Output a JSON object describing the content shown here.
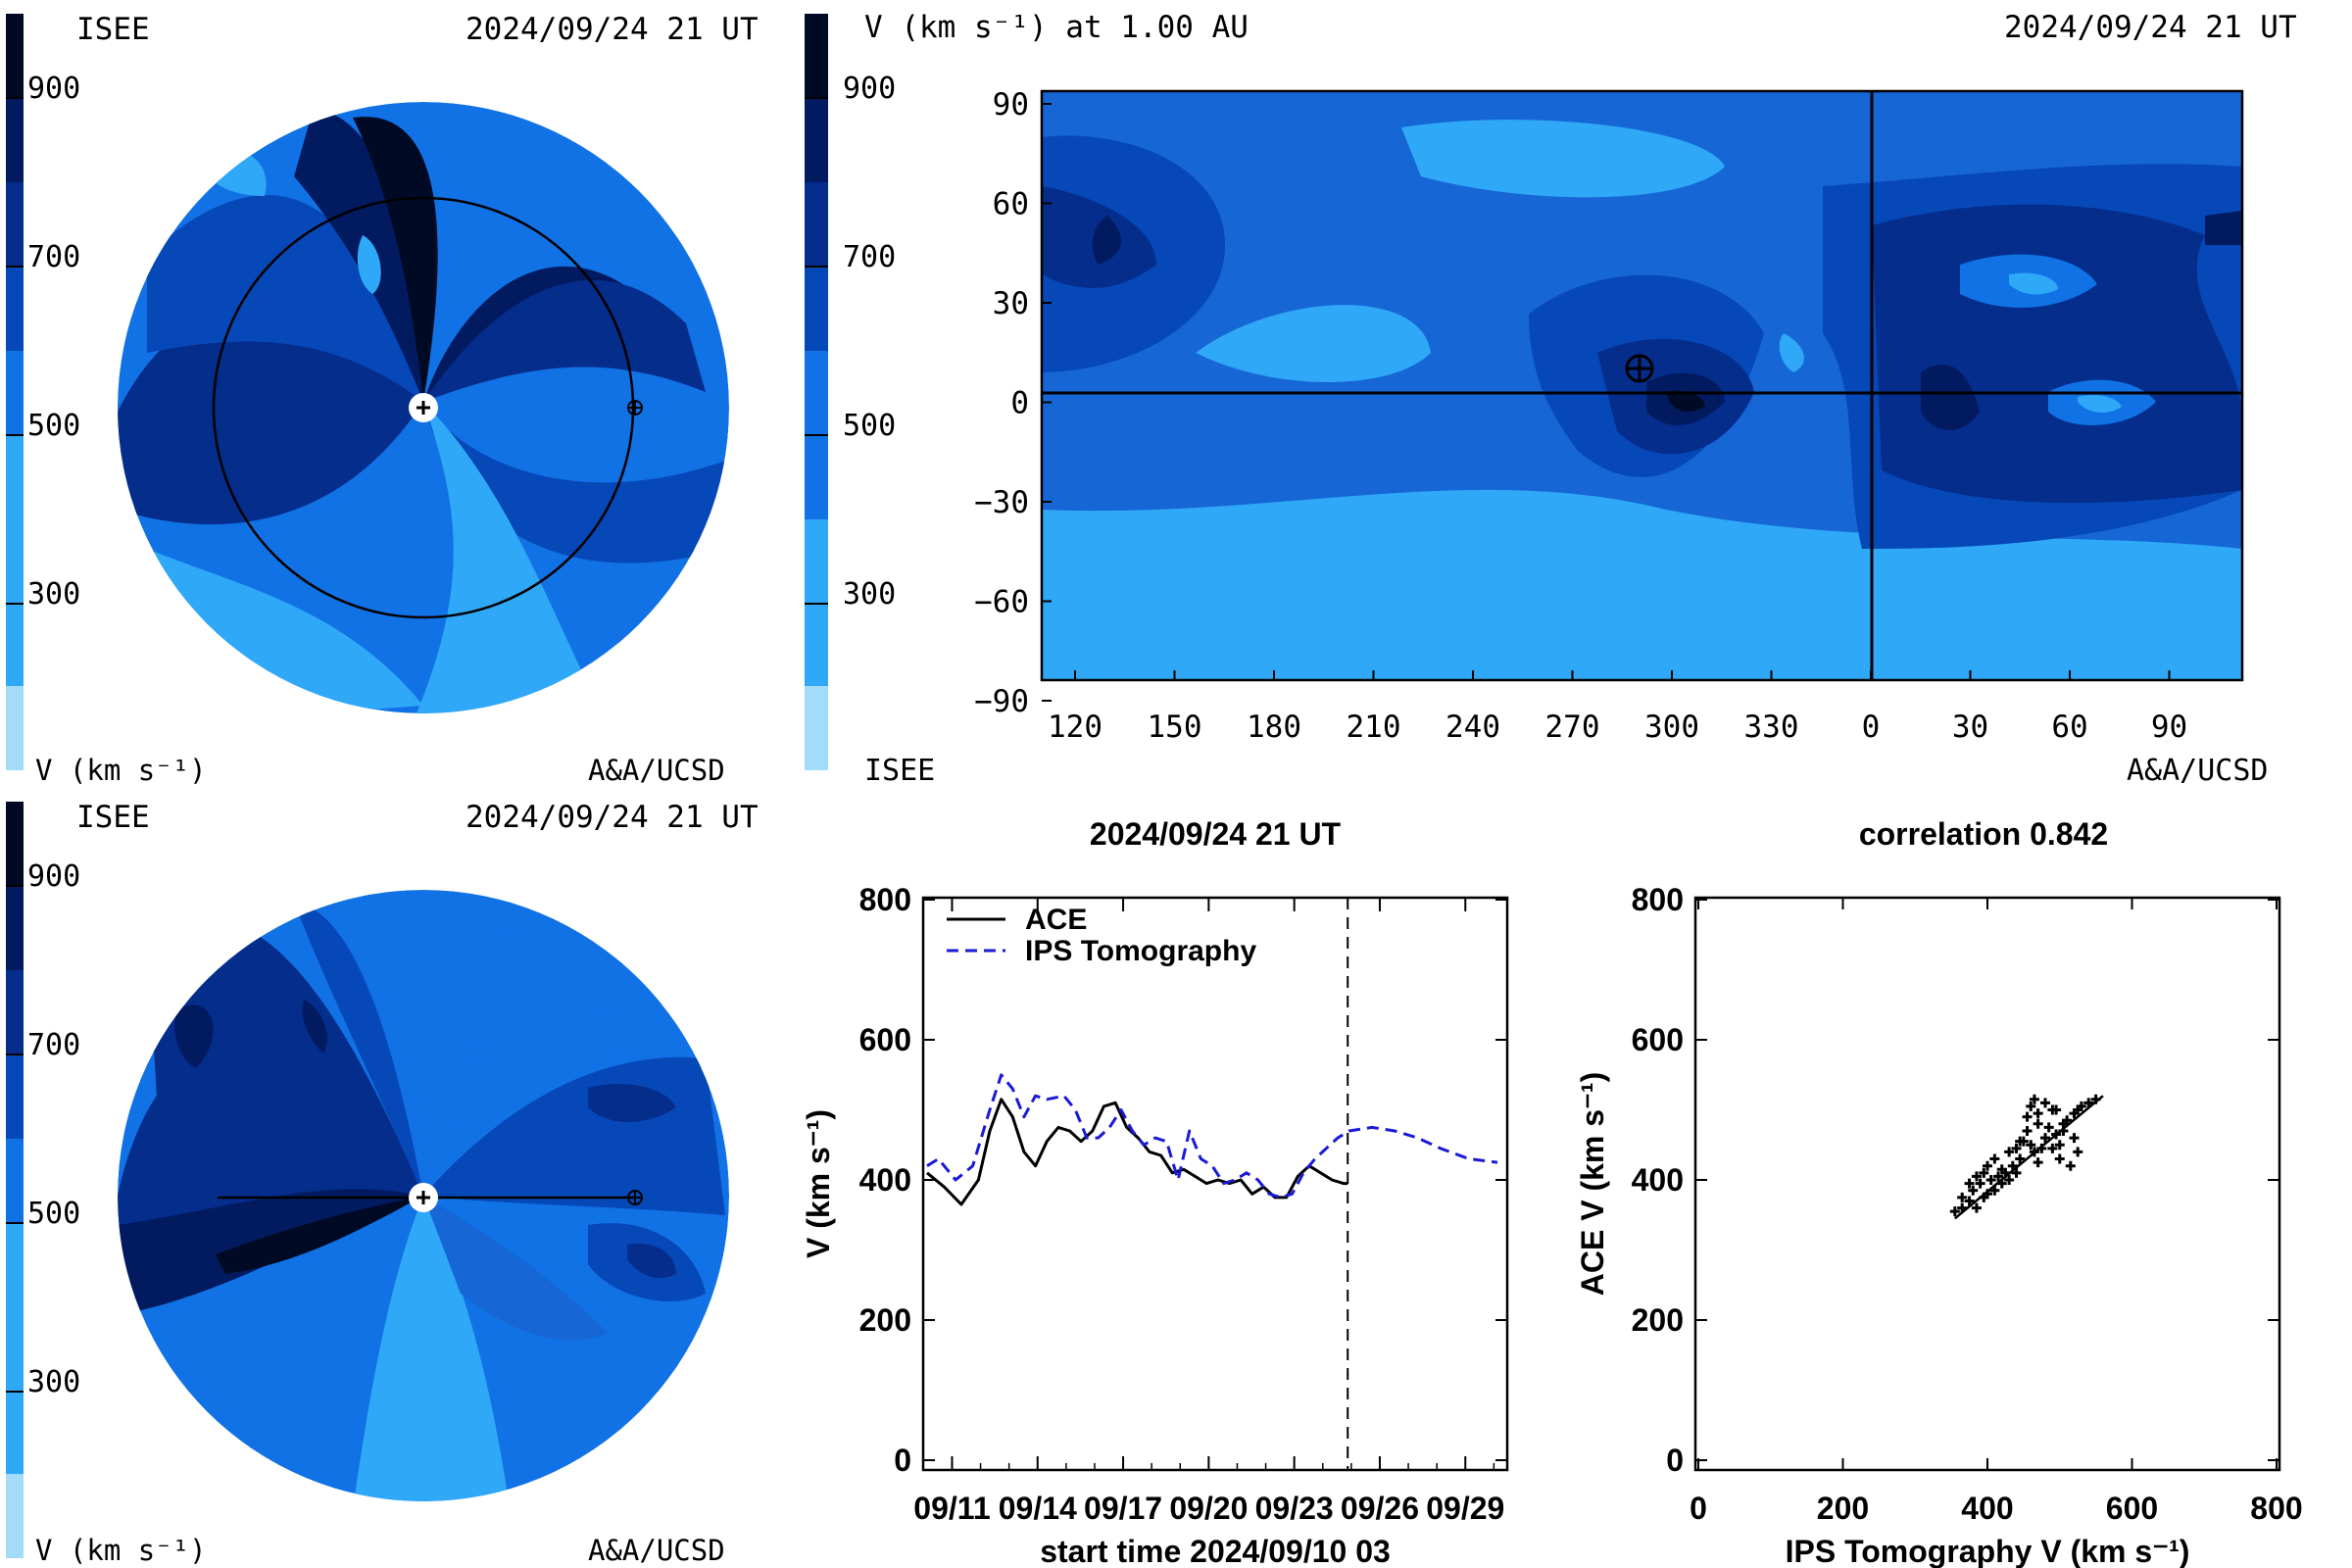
{
  "colors": {
    "bands": [
      "#a3dcf9",
      "#2fa8f7",
      "#1172e6",
      "#0748b8",
      "#042d8c",
      "#021a60",
      "#000a24"
    ],
    "mid": "#1666d6",
    "line_ace": "#000000",
    "line_ips": "#1a1ad6"
  },
  "colorbar_ticks": [
    "900",
    "700",
    "500",
    "300"
  ],
  "panel_ecliptic": {
    "org": "ISEE",
    "date": "2024/09/24 21 UT",
    "unit": "V (km s⁻¹)",
    "credit": "A&A/UCSD"
  },
  "panel_meridional": {
    "org": "ISEE",
    "date": "2024/09/24 21 UT",
    "unit": "V (km s⁻¹)",
    "credit": "A&A/UCSD"
  },
  "panel_map": {
    "title": "V (km s⁻¹) at 1.00 AU",
    "date": "2024/09/24 21 UT",
    "org": "ISEE",
    "credit": "A&A/UCSD",
    "xticks": [
      "120",
      "150",
      "180",
      "210",
      "240",
      "270",
      "300",
      "330",
      "0",
      "30",
      "60",
      "90"
    ],
    "yticks": [
      "90",
      "60",
      "30",
      "0",
      "−30",
      "−60",
      "−90"
    ]
  },
  "chart_data": [
    {
      "type": "line",
      "title": "2024/09/24 21 UT",
      "xlabel": "start time 2024/09/10 03",
      "ylabel": "V (km s⁻¹)",
      "ylim": [
        0,
        800
      ],
      "xlim_days": [
        0,
        20
      ],
      "xticks": [
        "09/11",
        "09/14",
        "09/17",
        "09/20",
        "09/23",
        "09/26",
        "09/29"
      ],
      "yticks": [
        "0",
        "200",
        "400",
        "600",
        "800"
      ],
      "now_marker_day": 14.75,
      "series": [
        {
          "name": "ACE",
          "x": [
            0,
            0.6,
            1.2,
            1.8,
            2.2,
            2.6,
            3.0,
            3.4,
            3.8,
            4.2,
            4.6,
            5.0,
            5.4,
            5.8,
            6.2,
            6.6,
            7.0,
            7.4,
            7.8,
            8.2,
            8.6,
            9.0,
            9.4,
            9.8,
            10.2,
            10.6,
            11.0,
            11.4,
            11.8,
            12.2,
            12.6,
            13.0,
            13.4,
            13.8,
            14.2,
            14.6,
            14.75
          ],
          "y": [
            410,
            390,
            365,
            400,
            470,
            515,
            490,
            440,
            420,
            455,
            475,
            470,
            455,
            470,
            505,
            510,
            475,
            460,
            440,
            435,
            410,
            415,
            405,
            395,
            400,
            395,
            400,
            380,
            390,
            375,
            375,
            405,
            420,
            410,
            400,
            395,
            395
          ]
        },
        {
          "name": "IPS Tomography",
          "x": [
            0,
            0.4,
            1.0,
            1.6,
            2.2,
            2.6,
            3.0,
            3.4,
            3.8,
            4.2,
            4.8,
            5.2,
            5.6,
            6.0,
            6.4,
            6.8,
            7.2,
            7.6,
            8.0,
            8.4,
            8.8,
            9.2,
            9.6,
            10.0,
            10.4,
            10.8,
            11.2,
            11.6,
            12.0,
            12.4,
            12.8,
            13.2,
            13.6,
            14.0,
            14.4,
            14.8,
            15.6,
            16.4,
            17.2,
            18.0,
            19.0,
            20.0
          ],
          "y": [
            420,
            430,
            400,
            420,
            500,
            550,
            530,
            490,
            520,
            515,
            520,
            500,
            460,
            460,
            475,
            500,
            470,
            450,
            460,
            455,
            400,
            470,
            430,
            420,
            395,
            400,
            410,
            400,
            380,
            375,
            380,
            410,
            430,
            445,
            460,
            470,
            475,
            470,
            460,
            445,
            430,
            425
          ]
        }
      ],
      "legend": "top-left"
    },
    {
      "type": "scatter",
      "title": "correlation 0.842",
      "xlabel": "IPS Tomography V (km s⁻¹)",
      "ylabel": "ACE V (km s⁻¹)",
      "xlim": [
        0,
        800
      ],
      "ylim": [
        0,
        800
      ],
      "xticks": [
        "0",
        "200",
        "400",
        "600",
        "800"
      ],
      "yticks": [
        "0",
        "200",
        "400",
        "600",
        "800"
      ],
      "points": [
        [
          355,
          355
        ],
        [
          365,
          360
        ],
        [
          375,
          370
        ],
        [
          380,
          385
        ],
        [
          385,
          360
        ],
        [
          395,
          375
        ],
        [
          390,
          395
        ],
        [
          400,
          380
        ],
        [
          405,
          400
        ],
        [
          410,
          385
        ],
        [
          415,
          405
        ],
        [
          420,
          395
        ],
        [
          425,
          410
        ],
        [
          430,
          400
        ],
        [
          435,
          420
        ],
        [
          440,
          410
        ],
        [
          445,
          430
        ],
        [
          440,
          445
        ],
        [
          450,
          455
        ],
        [
          455,
          470
        ],
        [
          460,
          450
        ],
        [
          465,
          440
        ],
        [
          470,
          425
        ],
        [
          475,
          445
        ],
        [
          480,
          460
        ],
        [
          470,
          480
        ],
        [
          485,
          475
        ],
        [
          490,
          500
        ],
        [
          495,
          465
        ],
        [
          500,
          450
        ],
        [
          505,
          470
        ],
        [
          510,
          485
        ],
        [
          520,
          460
        ],
        [
          525,
          440
        ],
        [
          515,
          420
        ],
        [
          500,
          430
        ],
        [
          490,
          445
        ],
        [
          470,
          495
        ],
        [
          460,
          505
        ],
        [
          455,
          490
        ],
        [
          465,
          515
        ],
        [
          480,
          510
        ],
        [
          505,
          480
        ],
        [
          520,
          495
        ],
        [
          530,
          505
        ],
        [
          540,
          510
        ],
        [
          550,
          515
        ],
        [
          525,
          500
        ],
        [
          495,
          500
        ],
        [
          385,
          405
        ],
        [
          400,
          420
        ],
        [
          410,
          430
        ],
        [
          375,
          395
        ],
        [
          395,
          410
        ],
        [
          420,
          415
        ],
        [
          365,
          375
        ],
        [
          430,
          440
        ],
        [
          445,
          455
        ]
      ],
      "fit_line": [
        [
          355,
          345
        ],
        [
          560,
          520
        ]
      ]
    }
  ]
}
